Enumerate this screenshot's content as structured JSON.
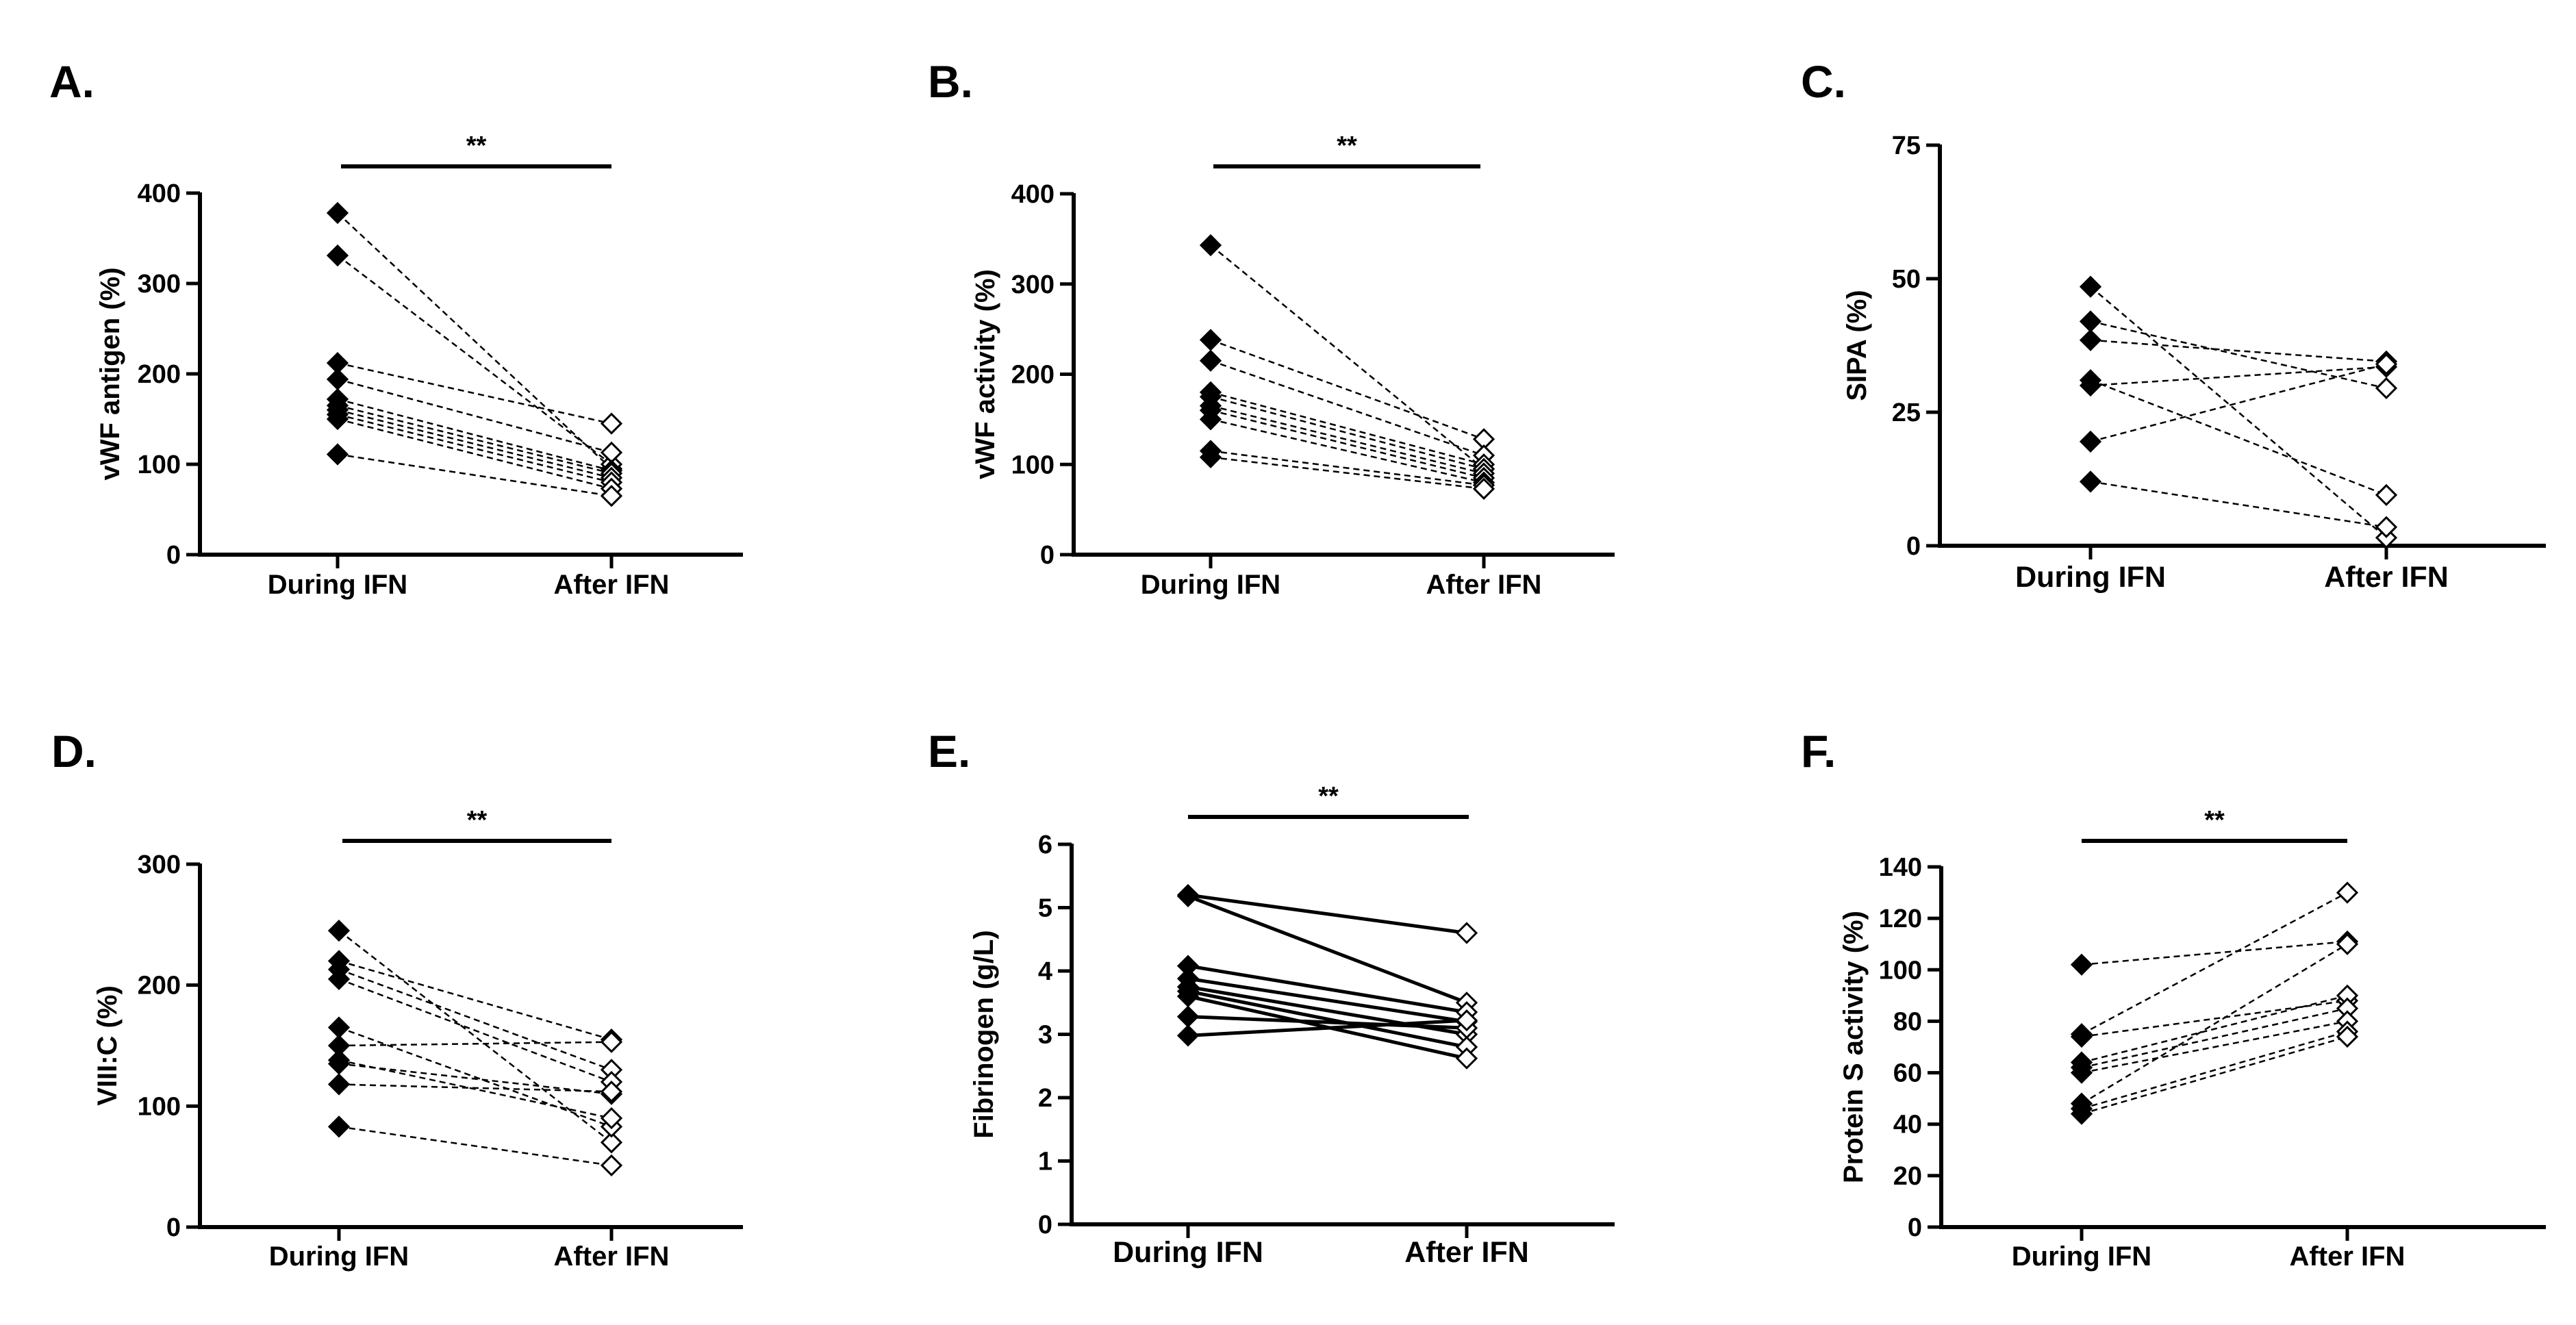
{
  "chart_data": [
    {
      "type": "line",
      "panel": "A.",
      "title": "",
      "xlabel": "",
      "ylabel": "vWF antigen (%)",
      "categories": [
        "During IFN",
        "After IFN"
      ],
      "ylim": [
        0,
        400
      ],
      "yticks": [
        "0",
        "100",
        "200",
        "300",
        "400"
      ],
      "line_style": "dashed",
      "significance": "**",
      "pairs": [
        [
          378,
          95
        ],
        [
          331,
          100
        ],
        [
          212,
          145
        ],
        [
          194,
          113
        ],
        [
          172,
          93
        ],
        [
          165,
          90
        ],
        [
          160,
          85
        ],
        [
          155,
          80
        ],
        [
          150,
          73
        ],
        [
          111,
          65
        ]
      ]
    },
    {
      "type": "line",
      "panel": "B.",
      "title": "",
      "xlabel": "",
      "ylabel": "vWF activity (%)",
      "categories": [
        "During IFN",
        "After IFN"
      ],
      "ylim": [
        0,
        400
      ],
      "yticks": [
        "0",
        "100",
        "200",
        "300",
        "400"
      ],
      "line_style": "dashed",
      "significance": "**",
      "pairs": [
        [
          343,
          95
        ],
        [
          238,
          128
        ],
        [
          215,
          110
        ],
        [
          180,
          100
        ],
        [
          175,
          95
        ],
        [
          165,
          90
        ],
        [
          160,
          85
        ],
        [
          150,
          80
        ],
        [
          115,
          77
        ],
        [
          108,
          73
        ]
      ]
    },
    {
      "type": "line",
      "panel": "C.",
      "title": "",
      "xlabel": "",
      "ylabel": "SIPA (%)",
      "categories": [
        "During IFN",
        "After IFN"
      ],
      "ylim": [
        0,
        75
      ],
      "yticks": [
        "0",
        "25",
        "50",
        "75"
      ],
      "line_style": "dashed",
      "significance": "",
      "pairs": [
        [
          48.5,
          1.5
        ],
        [
          42,
          29.5
        ],
        [
          38.5,
          34.5
        ],
        [
          31,
          9.5
        ],
        [
          30,
          33.5
        ],
        [
          19.5,
          34
        ],
        [
          12,
          3.5
        ]
      ]
    },
    {
      "type": "line",
      "panel": "D.",
      "title": "",
      "xlabel": "",
      "ylabel": "VIII:C (%)",
      "categories": [
        "During IFN",
        "After IFN"
      ],
      "ylim": [
        0,
        300
      ],
      "yticks": [
        "0",
        "100",
        "200",
        "300"
      ],
      "line_style": "dashed",
      "significance": "**",
      "pairs": [
        [
          245,
          70
        ],
        [
          220,
          155
        ],
        [
          213,
          130
        ],
        [
          205,
          120
        ],
        [
          165,
          83
        ],
        [
          150,
          153
        ],
        [
          138,
          90
        ],
        [
          135,
          110
        ],
        [
          118,
          112
        ],
        [
          83,
          51
        ]
      ]
    },
    {
      "type": "line",
      "panel": "E.",
      "title": "",
      "xlabel": "",
      "ylabel": "Fibrinogen (g/L)",
      "categories": [
        "During IFN",
        "After IFN"
      ],
      "ylim": [
        0,
        6
      ],
      "yticks": [
        "0",
        "1",
        "2",
        "3",
        "4",
        "5",
        "6"
      ],
      "line_style": "solid",
      "significance": "**",
      "pairs": [
        [
          5.2,
          4.6
        ],
        [
          5.18,
          3.5
        ],
        [
          4.08,
          3.35
        ],
        [
          3.88,
          3.2
        ],
        [
          3.75,
          3.0
        ],
        [
          3.68,
          2.8
        ],
        [
          3.6,
          2.62
        ],
        [
          3.28,
          3.1
        ],
        [
          2.98,
          3.22
        ]
      ]
    },
    {
      "type": "line",
      "panel": "F.",
      "title": "",
      "xlabel": "",
      "ylabel": "Protein S activity (%)",
      "categories": [
        "During IFN",
        "After IFN"
      ],
      "ylim": [
        0,
        140
      ],
      "yticks": [
        "0",
        "20",
        "40",
        "60",
        "80",
        "100",
        "120",
        "140"
      ],
      "line_style": "dashed",
      "significance": "**",
      "pairs": [
        [
          102,
          111
        ],
        [
          75,
          130
        ],
        [
          74,
          88
        ],
        [
          64,
          90
        ],
        [
          62,
          85
        ],
        [
          60,
          80
        ],
        [
          48,
          110
        ],
        [
          46,
          76
        ],
        [
          44,
          74
        ]
      ]
    }
  ]
}
